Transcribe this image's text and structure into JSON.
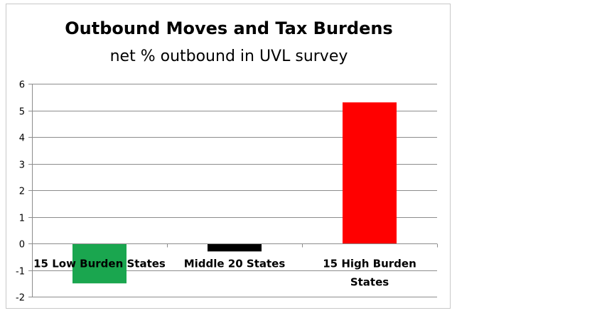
{
  "chart_data": {
    "type": "bar",
    "title": "Outbound Moves and Tax Burdens",
    "subtitle": "net % outbound in UVL survey",
    "xlabel": "",
    "ylabel": "",
    "categories": [
      "15 Low Burden States",
      "Middle 20 States",
      "15 High Burden States"
    ],
    "category_label_lines": [
      [
        "15 Low Burden States"
      ],
      [
        "Middle 20 States"
      ],
      [
        "15 High Burden",
        "States"
      ]
    ],
    "values": [
      -1.5,
      -0.3,
      5.3
    ],
    "colors": [
      "#1aa64f",
      "#000000",
      "#ff0000"
    ],
    "ylim": [
      -2,
      6
    ],
    "yticks": [
      -2,
      -1,
      0,
      1,
      2,
      3,
      4,
      5,
      6
    ],
    "grid": true,
    "legend": "none"
  }
}
